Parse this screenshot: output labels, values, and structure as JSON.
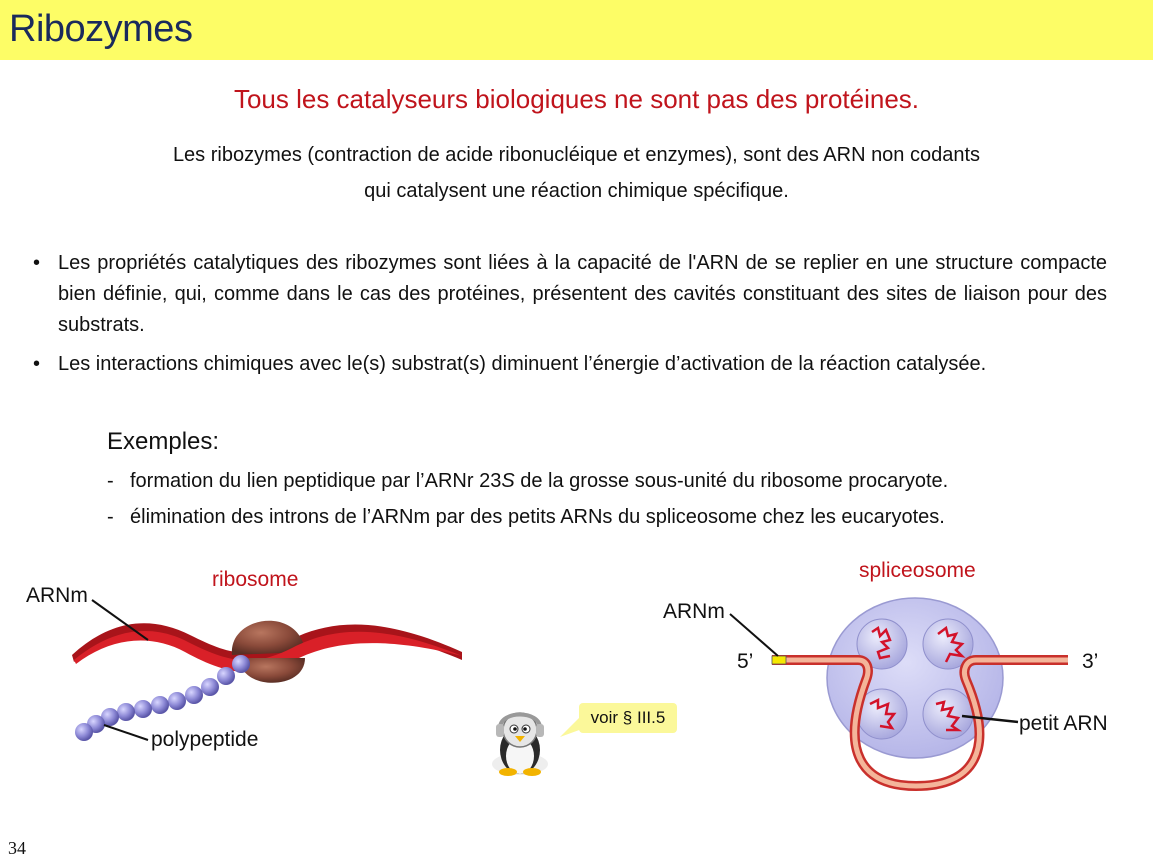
{
  "header": {
    "title": "Ribozymes"
  },
  "subtitle": "Tous les catalyseurs biologiques ne sont pas des protéines.",
  "intro": {
    "line1": "Les ribozymes (contraction de acide ribonucléique et enzymes), sont des ARN non codants",
    "line2": "qui catalysent une réaction chimique spécifique."
  },
  "bullets": [
    "Les propriétés catalytiques des ribozymes sont liées à la capacité de l'ARN de se replier en une structure compacte bien définie, qui, comme dans le cas des protéines, présentent des cavités constituant des sites de liaison pour des substrats.",
    "Les interactions chimiques avec le(s) substrat(s) diminuent l’énergie d’activation de la réaction catalysée."
  ],
  "bullet_marker": "•",
  "examples": {
    "heading": "Exemples:",
    "dash": "-",
    "item1": {
      "before": "formation du lien peptidique par l’ARNr 23",
      "italic": "S",
      "after": " de la grosse sous-unité du ribosome procaryote."
    },
    "item2": "élimination des introns de l’ARNm par des petits ARNs du spliceosome chez les eucaryotes."
  },
  "figure_left": {
    "title": "ribosome",
    "mrna_label": "ARNm",
    "polypeptide_label": "polypeptide"
  },
  "figure_right": {
    "title": "spliceosome",
    "mrna_label": "ARNm",
    "five_prime": "5’",
    "three_prime": "3’",
    "small_rna_label": "petit ARN"
  },
  "callout": {
    "text": "voir § III.5",
    "icon": "penguin-icon"
  },
  "page_number": "34",
  "colors": {
    "title_bar": "#fdfd66",
    "title_text": "#1a2a5c",
    "accent_red": "#c0141c",
    "ribbon": "#d92028",
    "ribosome": "#8a4a3a",
    "polypeptide": "#8d89d6",
    "spliceosome": "#c9c9f2",
    "callout": "#fbf89a"
  }
}
